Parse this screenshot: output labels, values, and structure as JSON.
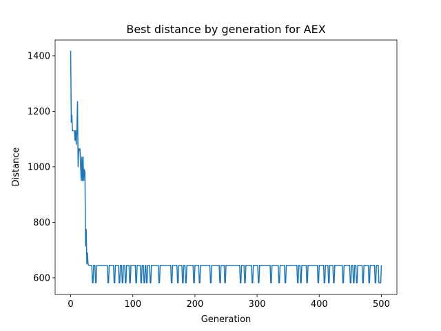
{
  "chart_data": {
    "type": "line",
    "title": "Best distance by generation for AEX",
    "xlabel": "Generation",
    "ylabel": "Distance",
    "xlim": [
      -25,
      525
    ],
    "ylim": [
      540,
      1457
    ],
    "xticks": [
      0,
      100,
      200,
      300,
      400,
      500
    ],
    "yticks": [
      600,
      800,
      1000,
      1200,
      1400
    ],
    "series": [
      {
        "color": "#1f77b4",
        "x": [
          0,
          1,
          2,
          3,
          4,
          5,
          6,
          7,
          8,
          9,
          10,
          11,
          12,
          13,
          14,
          15,
          16,
          17,
          18,
          19,
          20,
          21,
          22,
          23,
          24,
          25,
          26,
          27,
          28,
          29,
          30,
          31,
          34,
          35,
          36,
          37,
          39,
          40,
          41,
          42,
          59,
          60,
          61,
          62,
          69,
          70,
          71,
          72,
          77,
          78,
          79,
          80,
          82,
          83,
          84,
          85,
          87,
          88,
          89,
          90,
          94,
          95,
          96,
          97,
          104,
          105,
          106,
          107,
          112,
          113,
          114,
          115,
          117,
          118,
          119,
          120,
          121,
          122,
          123,
          124,
          127,
          128,
          129,
          130,
          141,
          142,
          143,
          144,
          161,
          162,
          163,
          164,
          171,
          172,
          173,
          174,
          179,
          180,
          181,
          182,
          184,
          185,
          186,
          187,
          197,
          198,
          199,
          200,
          206,
          207,
          208,
          209,
          224,
          225,
          226,
          227,
          239,
          240,
          241,
          242,
          247,
          248,
          249,
          250,
          272,
          273,
          274,
          275,
          279,
          280,
          281,
          282,
          291,
          292,
          293,
          294,
          301,
          302,
          303,
          304,
          321,
          322,
          323,
          324,
          334,
          335,
          336,
          337,
          344,
          345,
          346,
          347,
          364,
          365,
          366,
          367,
          369,
          370,
          371,
          372,
          379,
          380,
          381,
          382,
          397,
          398,
          399,
          400,
          407,
          408,
          409,
          410,
          414,
          415,
          416,
          417,
          422,
          423,
          424,
          425,
          437,
          438,
          439,
          440,
          449,
          450,
          451,
          452,
          454,
          455,
          456,
          457,
          459,
          460,
          461,
          462,
          469,
          470,
          471,
          472,
          479,
          480,
          481,
          482,
          489,
          490,
          491,
          492,
          495,
          496,
          499,
          500
        ],
        "values": [
          1418,
          1160,
          1185,
          1130,
          1130,
          1130,
          1130,
          1095,
          1130,
          1080,
          1130,
          1235,
          1000,
          1065,
          1060,
          1065,
          1000,
          950,
          1035,
          950,
          1035,
          950,
          990,
          980,
          715,
          775,
          650,
          690,
          650,
          645,
          645,
          645,
          645,
          582,
          582,
          645,
          645,
          582,
          582,
          645,
          645,
          582,
          582,
          645,
          645,
          582,
          582,
          645,
          645,
          582,
          582,
          645,
          645,
          582,
          582,
          645,
          645,
          582,
          582,
          645,
          645,
          582,
          582,
          645,
          645,
          582,
          582,
          645,
          645,
          582,
          582,
          645,
          645,
          582,
          582,
          645,
          645,
          582,
          582,
          645,
          645,
          582,
          582,
          645,
          645,
          582,
          582,
          645,
          645,
          582,
          582,
          645,
          645,
          582,
          582,
          645,
          645,
          582,
          582,
          645,
          645,
          582,
          582,
          645,
          645,
          582,
          582,
          645,
          645,
          582,
          582,
          645,
          645,
          582,
          582,
          645,
          645,
          582,
          582,
          645,
          645,
          582,
          582,
          645,
          645,
          582,
          582,
          645,
          645,
          582,
          582,
          645,
          645,
          582,
          582,
          645,
          645,
          582,
          582,
          645,
          645,
          582,
          582,
          645,
          645,
          582,
          582,
          645,
          645,
          582,
          582,
          645,
          645,
          582,
          582,
          645,
          645,
          582,
          582,
          645,
          645,
          582,
          582,
          645,
          645,
          582,
          582,
          645,
          645,
          582,
          582,
          645,
          645,
          582,
          582,
          645,
          645,
          582,
          582,
          645,
          645,
          582,
          582,
          645,
          645,
          582,
          582,
          645,
          645,
          582,
          582,
          645,
          645,
          582,
          582,
          645,
          645,
          582,
          582,
          645,
          645,
          582,
          582,
          645,
          645,
          582,
          582,
          645,
          645,
          582,
          582,
          645
        ]
      }
    ]
  }
}
